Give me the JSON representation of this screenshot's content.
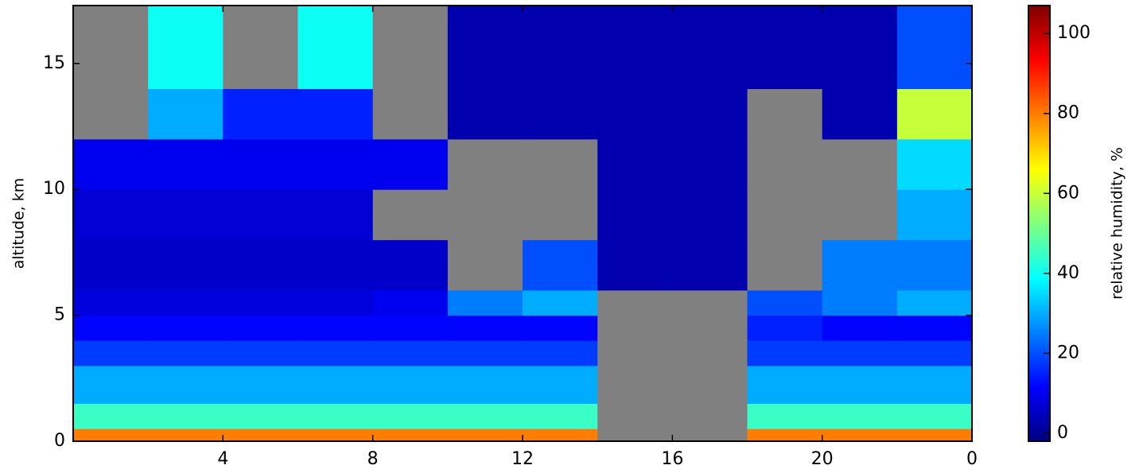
{
  "chart_data": {
    "type": "heatmap",
    "ylabel": "altitude, km",
    "x_edges": [
      0,
      2,
      4,
      6,
      8,
      10,
      12,
      14,
      16,
      18,
      20,
      22,
      24
    ],
    "y_edges": [
      0,
      0.5,
      1.5,
      3,
      4,
      5,
      6,
      8,
      10,
      12,
      14,
      17.3
    ],
    "z": [
      [
        80,
        80,
        80,
        80,
        80,
        80,
        80,
        null,
        null,
        80,
        80,
        80
      ],
      [
        45,
        45,
        45,
        45,
        45,
        45,
        45,
        null,
        null,
        45,
        45,
        45
      ],
      [
        30,
        30,
        30,
        30,
        30,
        30,
        30,
        null,
        null,
        30,
        30,
        30
      ],
      [
        18,
        18,
        18,
        18,
        18,
        18,
        18,
        null,
        null,
        18,
        18,
        18
      ],
      [
        12,
        12,
        12,
        12,
        12,
        12,
        12,
        null,
        null,
        15,
        12,
        12
      ],
      [
        8,
        8,
        8,
        8,
        10,
        25,
        30,
        null,
        null,
        20,
        25,
        30
      ],
      [
        6,
        6,
        6,
        6,
        6,
        null,
        20,
        3,
        3,
        null,
        25,
        25
      ],
      [
        7,
        7,
        7,
        7,
        null,
        null,
        null,
        3,
        3,
        null,
        null,
        30
      ],
      [
        10,
        10,
        10,
        10,
        10,
        null,
        null,
        3,
        3,
        null,
        null,
        35
      ],
      [
        null,
        30,
        15,
        15,
        null,
        3,
        3,
        3,
        3,
        null,
        3,
        60
      ],
      [
        null,
        40,
        null,
        40,
        null,
        3,
        3,
        3,
        3,
        3,
        3,
        20
      ]
    ],
    "missing_color": "#808080",
    "colormap": "jet",
    "xlim": [
      0,
      24
    ],
    "xticks": [
      4,
      8,
      12,
      16,
      20,
      {
        "value": 24,
        "label": "0"
      }
    ],
    "ylim": [
      0,
      17.3
    ],
    "yticks": [
      0,
      5,
      10,
      15
    ],
    "colorbar": {
      "label": "relative humidity, %",
      "lim": [
        -2,
        107
      ],
      "ticks": [
        0,
        20,
        40,
        60,
        80,
        100
      ]
    },
    "grid": false
  }
}
